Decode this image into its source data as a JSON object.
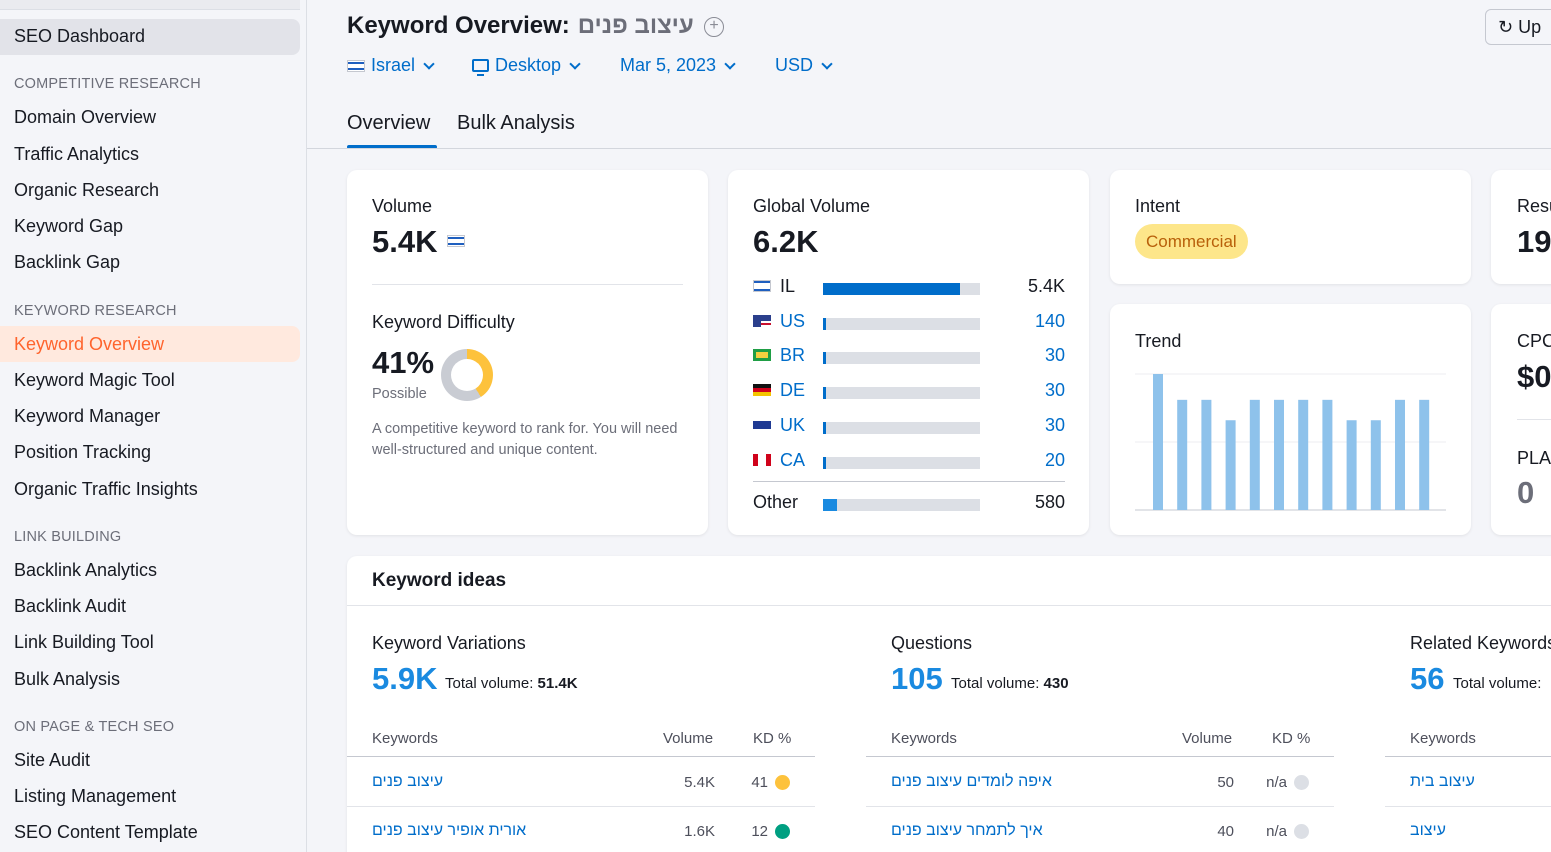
{
  "sidebar": {
    "dashboard": "SEO Dashboard",
    "sections": [
      {
        "heading": "COMPETITIVE RESEARCH",
        "items": [
          "Domain Overview",
          "Traffic Analytics",
          "Organic Research",
          "Keyword Gap",
          "Backlink Gap"
        ]
      },
      {
        "heading": "KEYWORD RESEARCH",
        "items": [
          "Keyword Overview",
          "Keyword Magic Tool",
          "Keyword Manager",
          "Position Tracking",
          "Organic Traffic Insights"
        ]
      },
      {
        "heading": "LINK BUILDING",
        "items": [
          "Backlink Analytics",
          "Backlink Audit",
          "Link Building Tool",
          "Bulk Analysis"
        ]
      },
      {
        "heading": "ON PAGE & TECH SEO",
        "items": [
          "Site Audit",
          "Listing Management",
          "SEO Content Template"
        ]
      }
    ],
    "active_item": "Keyword Overview"
  },
  "header": {
    "title": "Keyword Overview:",
    "keyword": "עיצוב פנים",
    "filters": {
      "country": "Israel",
      "device": "Desktop",
      "date": "Mar 5, 2023",
      "currency": "USD"
    },
    "update_label": "Up",
    "tabs": [
      "Overview",
      "Bulk Analysis"
    ]
  },
  "volume_card": {
    "label": "Volume",
    "value": "5.4K",
    "kd_label": "Keyword Difficulty",
    "kd_value": "41%",
    "kd_level": "Possible",
    "kd_fraction": 0.41,
    "kd_text": "A competitive keyword to rank for. You will need well-structured and unique content."
  },
  "global_card": {
    "label": "Global Volume",
    "value": "6.2K",
    "rows": [
      {
        "code": "IL",
        "value": "5.4K",
        "fraction": 0.87
      },
      {
        "code": "US",
        "value": "140",
        "fraction": 0.02
      },
      {
        "code": "BR",
        "value": "30",
        "fraction": 0.01
      },
      {
        "code": "DE",
        "value": "30",
        "fraction": 0.01
      },
      {
        "code": "UK",
        "value": "30",
        "fraction": 0.01
      },
      {
        "code": "CA",
        "value": "20",
        "fraction": 0.01
      }
    ],
    "other_label": "Other",
    "other_value": "580",
    "other_fraction": 0.09
  },
  "intent_card": {
    "label": "Intent",
    "value": "Commercial"
  },
  "results_card": {
    "label": "Resu",
    "value": "19"
  },
  "trend_card": {
    "label": "Trend",
    "values": [
      1.0,
      0.81,
      0.81,
      0.66,
      0.81,
      0.81,
      0.81,
      0.81,
      0.66,
      0.66,
      0.81,
      0.81
    ]
  },
  "cpc_card": {
    "label": "CPC",
    "value": "$0",
    "pla_label": "PLA",
    "pla_value": "0"
  },
  "keyword_ideas": {
    "title": "Keyword ideas",
    "columns": [
      {
        "title": "Keyword Variations",
        "count": "5.9K",
        "total_label": "Total volume:",
        "total_value": "51.4K",
        "headers": [
          "Keywords",
          "Volume",
          "KD %"
        ],
        "rows": [
          {
            "keyword": "עיצוב פנים",
            "volume": "5.4K",
            "kd": "41",
            "kd_color": "#fdc23c"
          },
          {
            "keyword": "אורית אופיר עיצוב פנים",
            "volume": "1.6K",
            "kd": "12",
            "kd_color": "#009f81"
          }
        ]
      },
      {
        "title": "Questions",
        "count": "105",
        "total_label": "Total volume:",
        "total_value": "430",
        "headers": [
          "Keywords",
          "Volume",
          "KD %"
        ],
        "rows": [
          {
            "keyword": "איפה לומדים עיצוב פנים",
            "volume": "50",
            "kd": "n/a",
            "kd_color": "#dcdfe5"
          },
          {
            "keyword": "איך לתמחר עיצוב פנים",
            "volume": "40",
            "kd": "n/a",
            "kd_color": "#dcdfe5"
          }
        ]
      },
      {
        "title": "Related Keywords",
        "count": "56",
        "total_label": "Total volume:",
        "headers": [
          "Keywords"
        ],
        "rows": [
          {
            "keyword": "עיצוב בית"
          },
          {
            "keyword": "עיצוב"
          }
        ]
      }
    ]
  },
  "colors": {
    "accent": "#006dca",
    "active": "#ff642d",
    "intent_bg": "#fde68a",
    "trend_bar": "#8ec2eb"
  }
}
